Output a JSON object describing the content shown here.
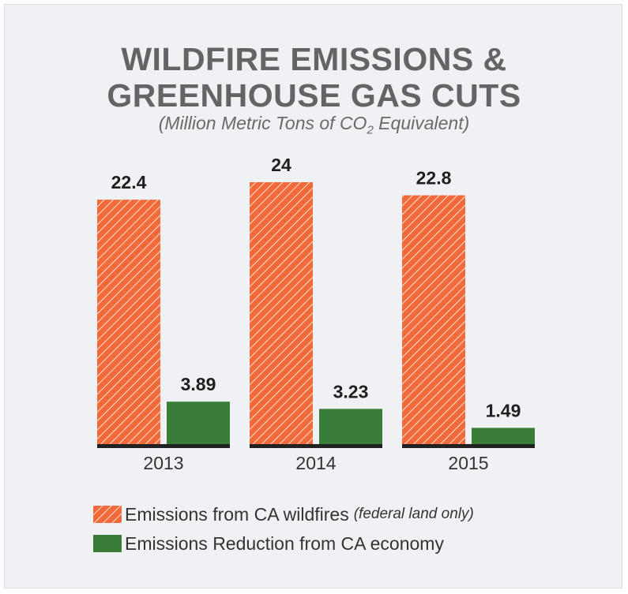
{
  "colors": {
    "wildfire": "#f26a3a",
    "wildfire_hatch": "#ffffff",
    "reduction": "#3a7d38",
    "baseline": "#222222",
    "value_label": "#1f1f1f",
    "tick_label": "#333333"
  },
  "title_line_1": "WILDFIRE EMISSIONS &",
  "title_line_2": "GREENHOUSE GAS CUTS",
  "subtitle_main": "(Million Metric Tons of CO",
  "subtitle_sub": "2",
  "subtitle_tail": " Equivalent)",
  "legend": {
    "wildfire_label": "Emissions from CA wildfires",
    "wildfire_note": "(federal land only)",
    "reduction_label": "Emissions Reduction from CA economy"
  },
  "chart_data": {
    "type": "bar",
    "title": "WILDFIRE EMISSIONS & GREENHOUSE GAS CUTS",
    "subtitle": "(Million Metric Tons of CO2 Equivalent)",
    "categories": [
      "2013",
      "2014",
      "2015"
    ],
    "series": [
      {
        "name": "Emissions from CA wildfires (federal land only)",
        "values": [
          22.4,
          24,
          22.8
        ],
        "labels": [
          "22.4",
          "24",
          "22.8"
        ],
        "pattern": "diagonal-hatch"
      },
      {
        "name": "Emissions Reduction from CA economy",
        "values": [
          3.89,
          3.23,
          1.49
        ],
        "labels": [
          "3.89",
          "3.23",
          "1.49"
        ],
        "pattern": "solid"
      }
    ],
    "ylim": [
      0,
      24
    ],
    "grid": false,
    "legend_position": "bottom"
  }
}
